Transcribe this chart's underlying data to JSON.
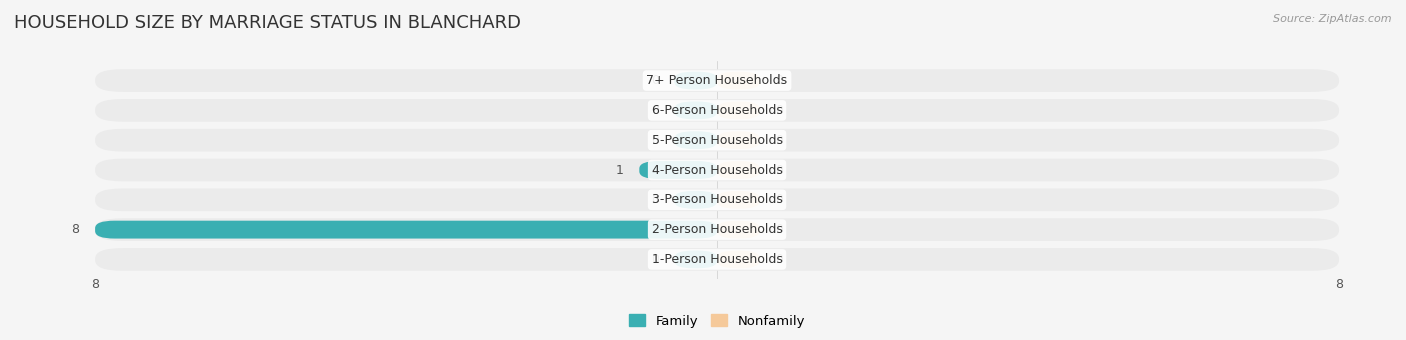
{
  "title": "HOUSEHOLD SIZE BY MARRIAGE STATUS IN BLANCHARD",
  "source": "Source: ZipAtlas.com",
  "categories": [
    "7+ Person Households",
    "6-Person Households",
    "5-Person Households",
    "4-Person Households",
    "3-Person Households",
    "2-Person Households",
    "1-Person Households"
  ],
  "family_values": [
    0,
    0,
    0,
    1,
    0,
    8,
    0
  ],
  "nonfamily_values": [
    0,
    0,
    0,
    0,
    0,
    0,
    0
  ],
  "family_color": "#3AAFB2",
  "nonfamily_color": "#F5C99A",
  "row_bg_color": "#EBEBEB",
  "fig_bg_color": "#F5F5F5",
  "xlim_left": -8,
  "xlim_right": 8,
  "stub_size": 0.55,
  "bar_height": 0.6,
  "label_color": "#555555",
  "title_fontsize": 13,
  "value_fontsize": 9,
  "cat_fontsize": 9,
  "legend_labels": [
    "Family",
    "Nonfamily"
  ]
}
